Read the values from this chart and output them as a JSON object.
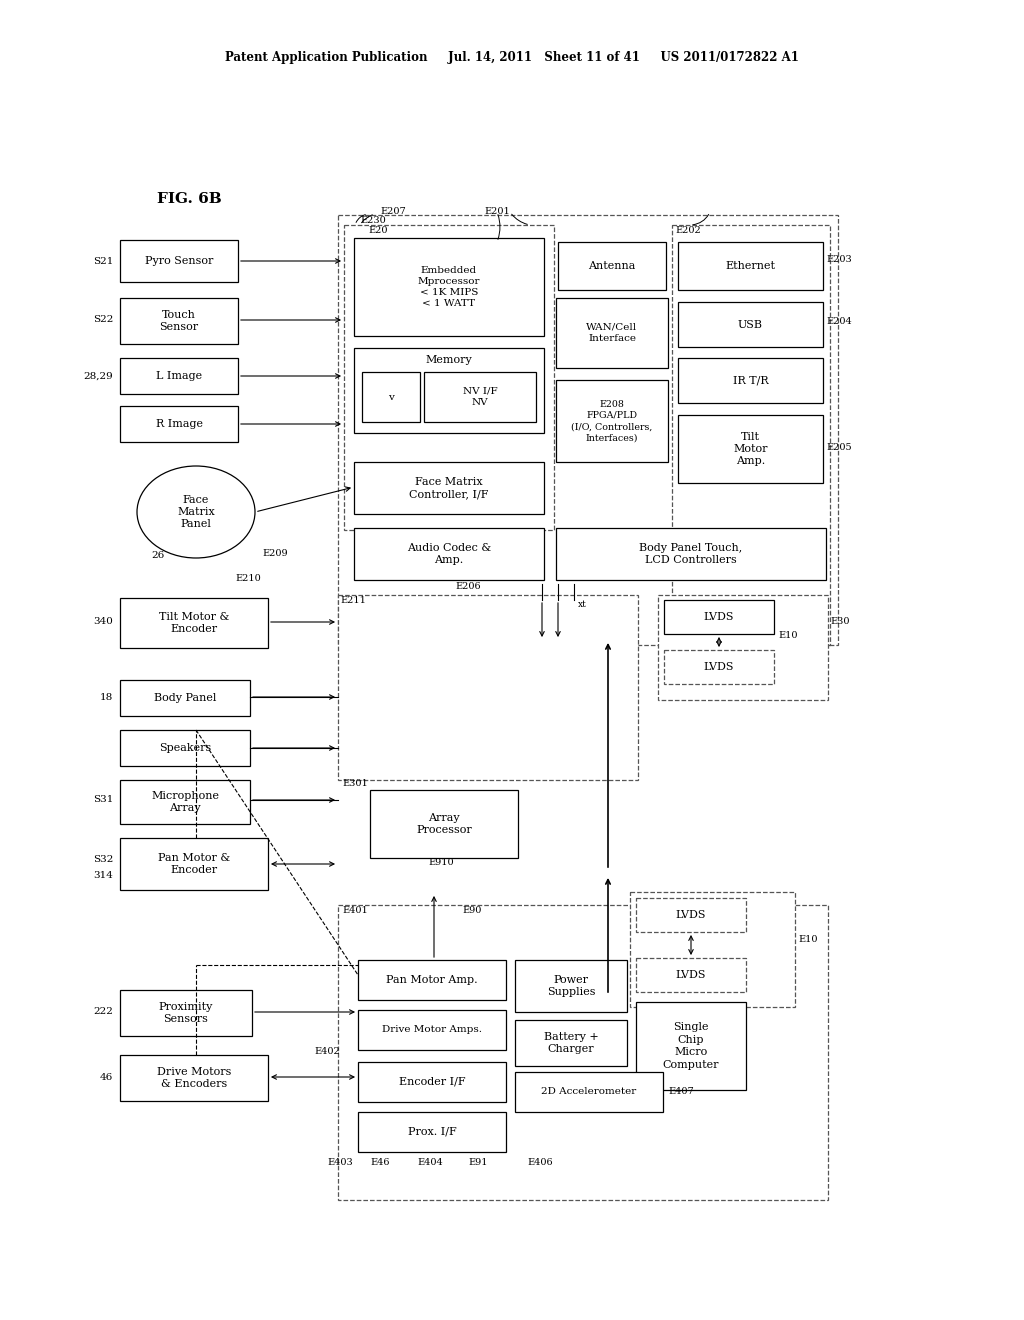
{
  "header": "Patent Application Publication     Jul. 14, 2011   Sheet 11 of 41     US 2011/0172822 A1",
  "fig_label": "FIG. 6B",
  "bg_color": "#ffffff"
}
